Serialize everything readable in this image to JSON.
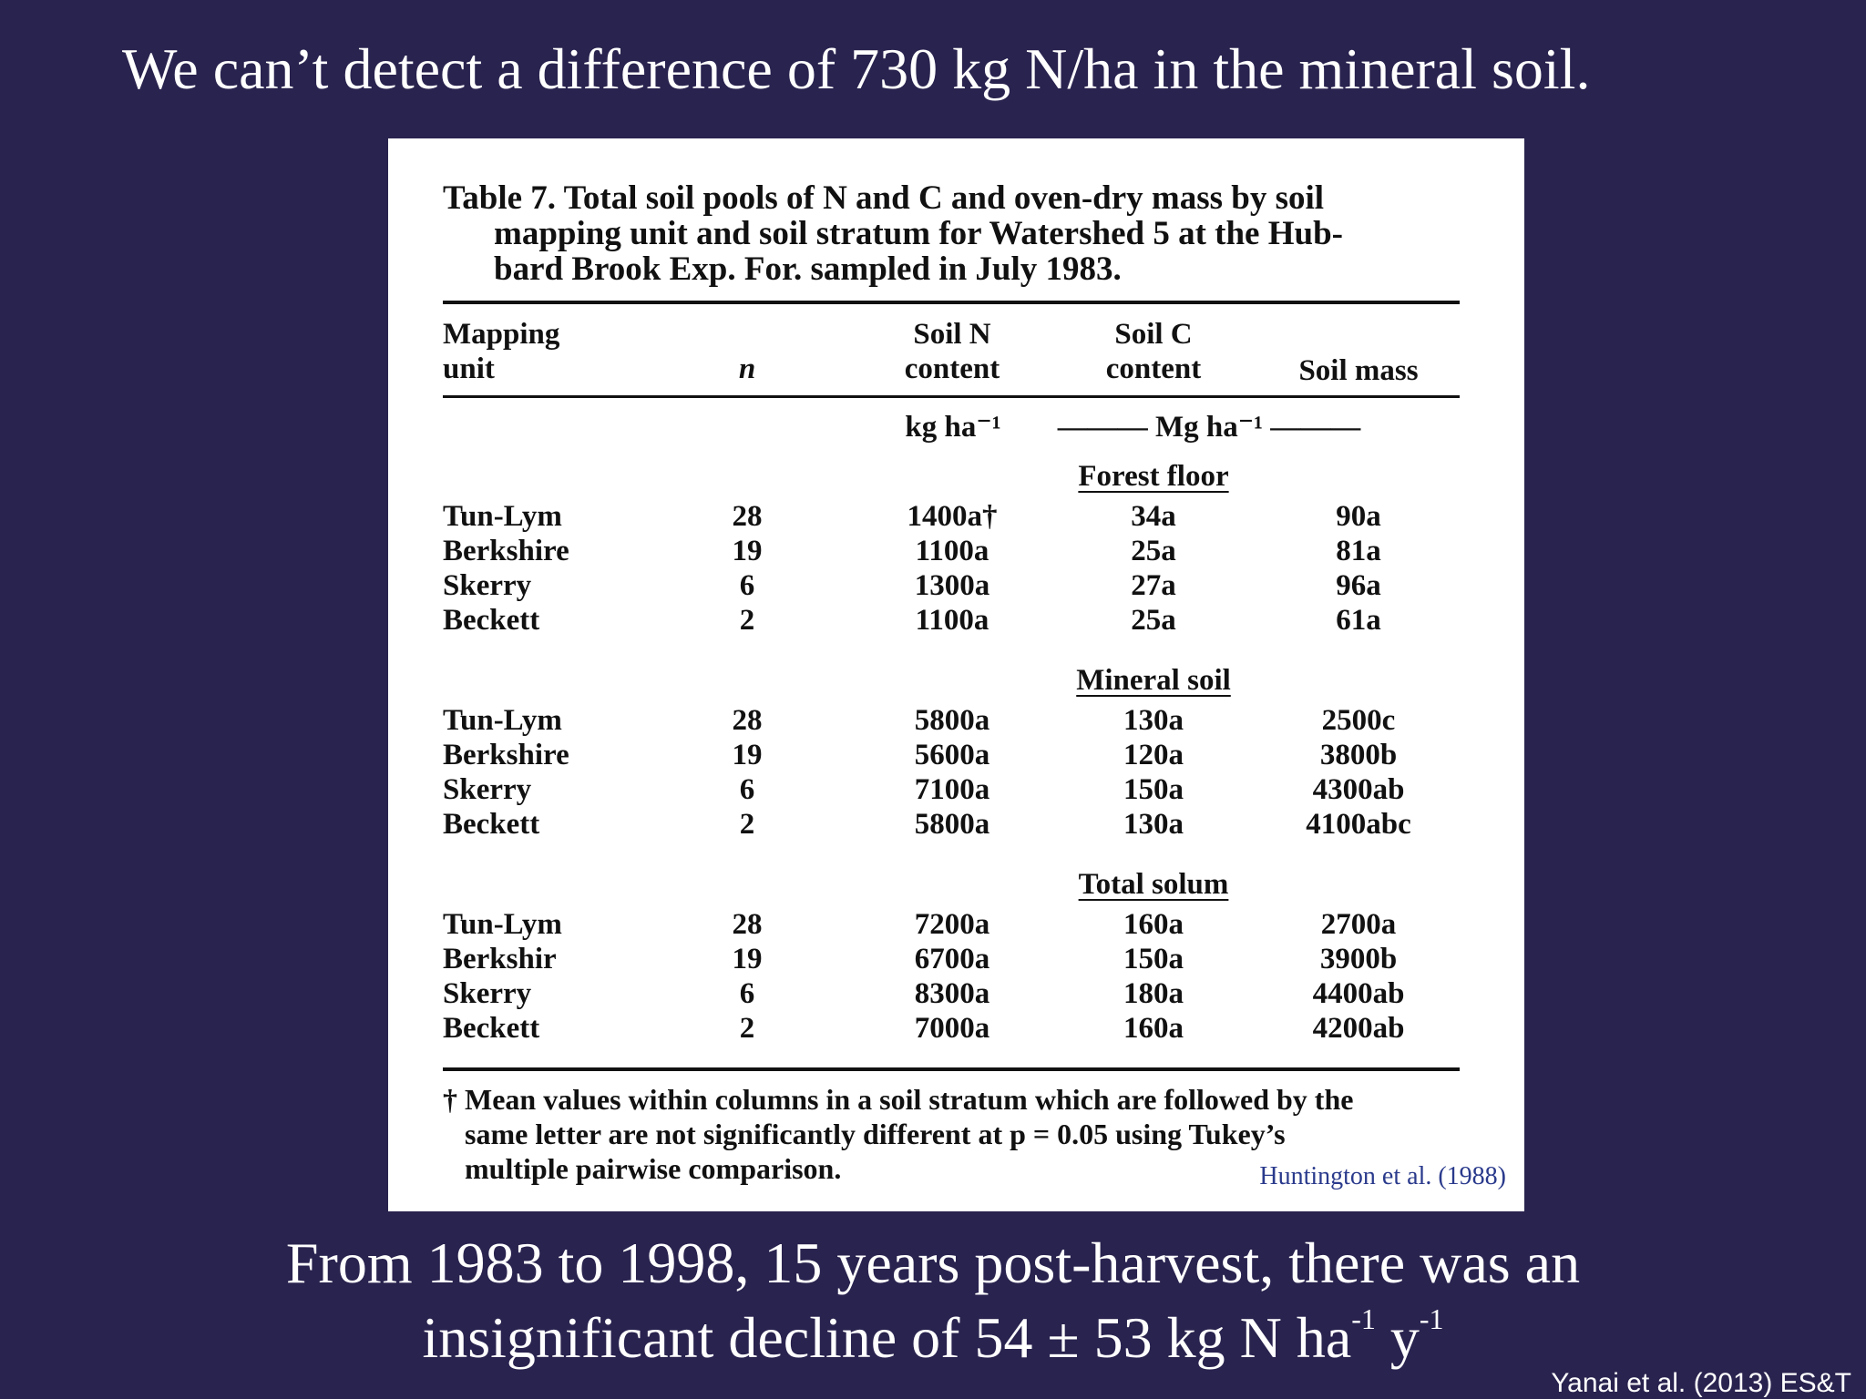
{
  "slide_title": "We can’t detect a difference of 730 kg N/ha in the mineral soil.",
  "table": {
    "caption_lines": [
      "Table 7. Total soil pools of N and C and oven-dry mass by soil",
      "mapping unit and soil stratum for Watershed 5 at the Hub-",
      "bard Brook Exp. For. sampled in July 1983."
    ],
    "headers": {
      "mapping_unit_1": "Mapping",
      "mapping_unit_2": "unit",
      "n": "n",
      "soil_n_1": "Soil N",
      "soil_n_2": "content",
      "soil_c_1": "Soil C",
      "soil_c_2": "content",
      "soil_mass": "Soil mass"
    },
    "units": {
      "kg": "kg ha⁻¹",
      "mg": "——— Mg ha⁻¹ ———"
    },
    "sections": [
      {
        "name": "Forest floor",
        "rows": [
          [
            "Tun-Lym",
            "28",
            "1400a†",
            "34a",
            "90a"
          ],
          [
            "Berkshire",
            "19",
            "1100a",
            "25a",
            "81a"
          ],
          [
            "Skerry",
            "6",
            "1300a",
            "27a",
            "96a"
          ],
          [
            "Beckett",
            "2",
            "1100a",
            "25a",
            "61a"
          ]
        ]
      },
      {
        "name": "Mineral soil",
        "rows": [
          [
            "Tun-Lym",
            "28",
            "5800a",
            "130a",
            "2500c"
          ],
          [
            "Berkshire",
            "19",
            "5600a",
            "120a",
            "3800b"
          ],
          [
            "Skerry",
            "6",
            "7100a",
            "150a",
            "4300ab"
          ],
          [
            "Beckett",
            "2",
            "5800a",
            "130a",
            "4100abc"
          ]
        ]
      },
      {
        "name": "Total solum",
        "rows": [
          [
            "Tun-Lym",
            "28",
            "7200a",
            "160a",
            "2700a"
          ],
          [
            "Berkshir",
            "19",
            "6700a",
            "150a",
            "3900b"
          ],
          [
            "Skerry",
            "6",
            "8300a",
            "180a",
            "4400ab"
          ],
          [
            "Beckett",
            "2",
            "7000a",
            "160a",
            "4200ab"
          ]
        ]
      }
    ],
    "footnote_lines": [
      "† Mean values within columns in a soil stratum which are followed by the",
      "same letter are not significantly different at p = 0.05 using Tukey’s",
      "multiple pairwise comparison."
    ],
    "credit": "Huntington et al. (1988)"
  },
  "bottom": {
    "line1": "From 1983 to 1998, 15 years post-harvest, there was an",
    "line2": "insignificant decline of 54 ±  53 kg N ha",
    "exp1": "-1",
    "line2b": " y",
    "exp2": "-1"
  },
  "citation": "Yanai et al. (2013) ES&T"
}
